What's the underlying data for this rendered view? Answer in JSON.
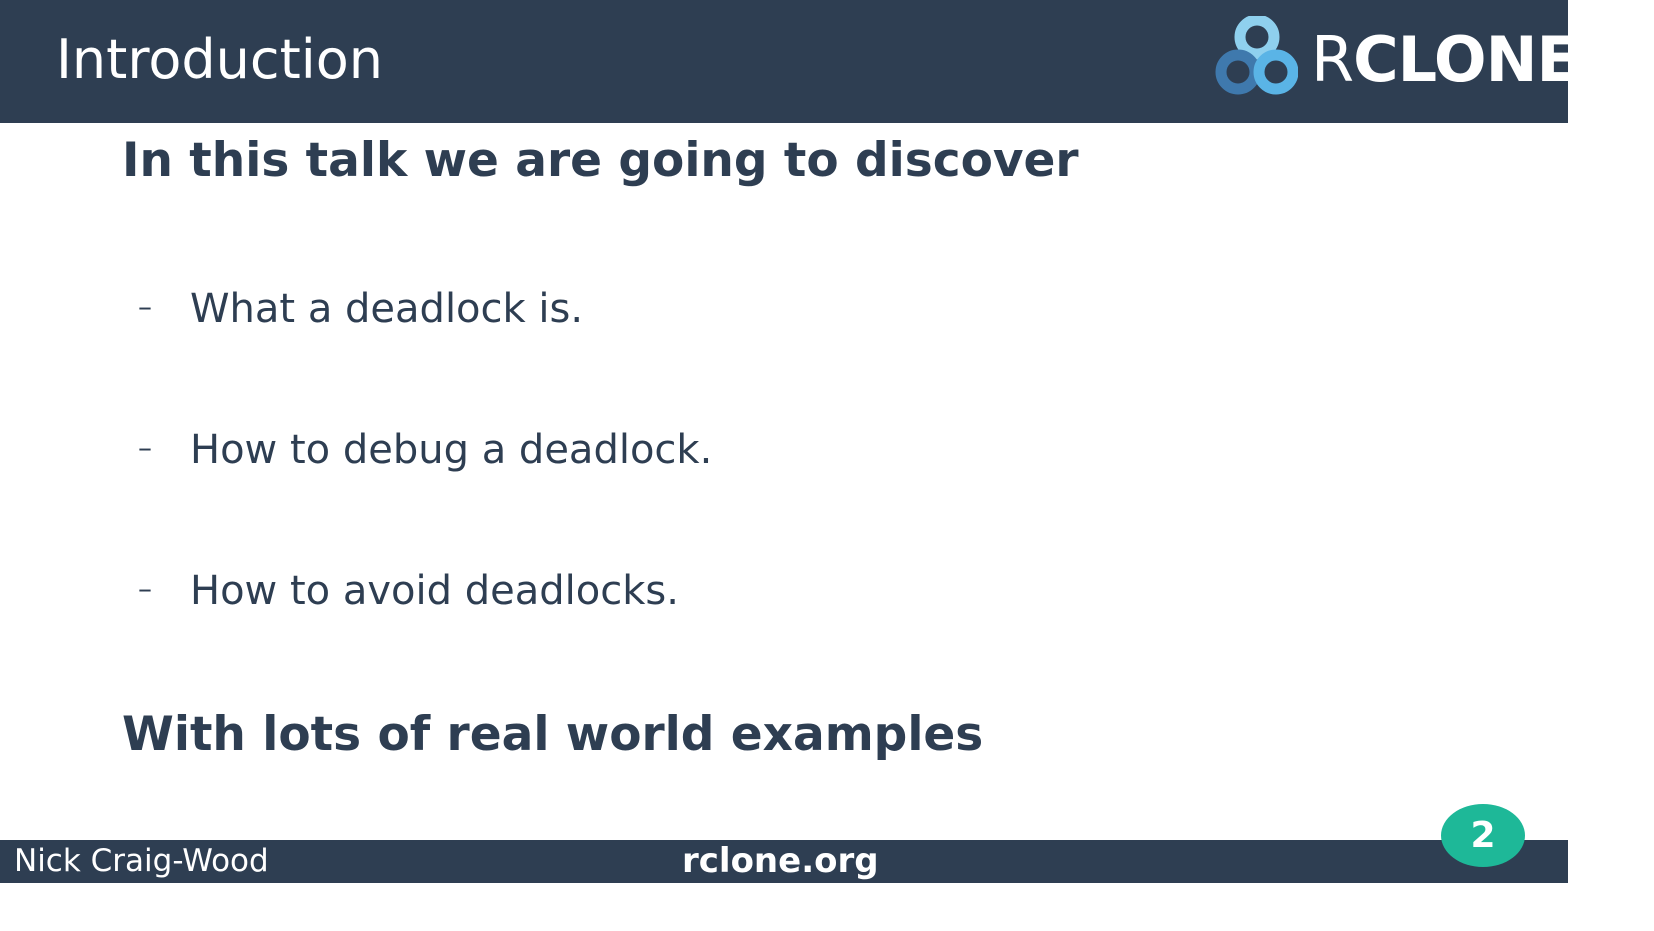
{
  "slide": {
    "title": "Introduction",
    "logo": {
      "icon": "rclone-logo-icon",
      "text_prefix": "R",
      "text_rest": "CLONE"
    },
    "heading_1": "In this talk we are going to discover",
    "bullets": [
      {
        "marker": "–",
        "text": "What a deadlock is."
      },
      {
        "marker": "–",
        "text": "How to debug a deadlock."
      },
      {
        "marker": "–",
        "text": "How to avoid deadlocks."
      }
    ],
    "heading_2": "With lots of real world examples",
    "footer": {
      "author": "Nick Craig-Wood",
      "site": "rclone.org"
    },
    "page_number": "2"
  },
  "colors": {
    "bar": "#2e3e52",
    "text": "#2e3e52",
    "badge": "#1eb898",
    "logo_light": "#8fd0ee",
    "logo_mid": "#5ab4e6",
    "logo_dark": "#3f79ad"
  }
}
